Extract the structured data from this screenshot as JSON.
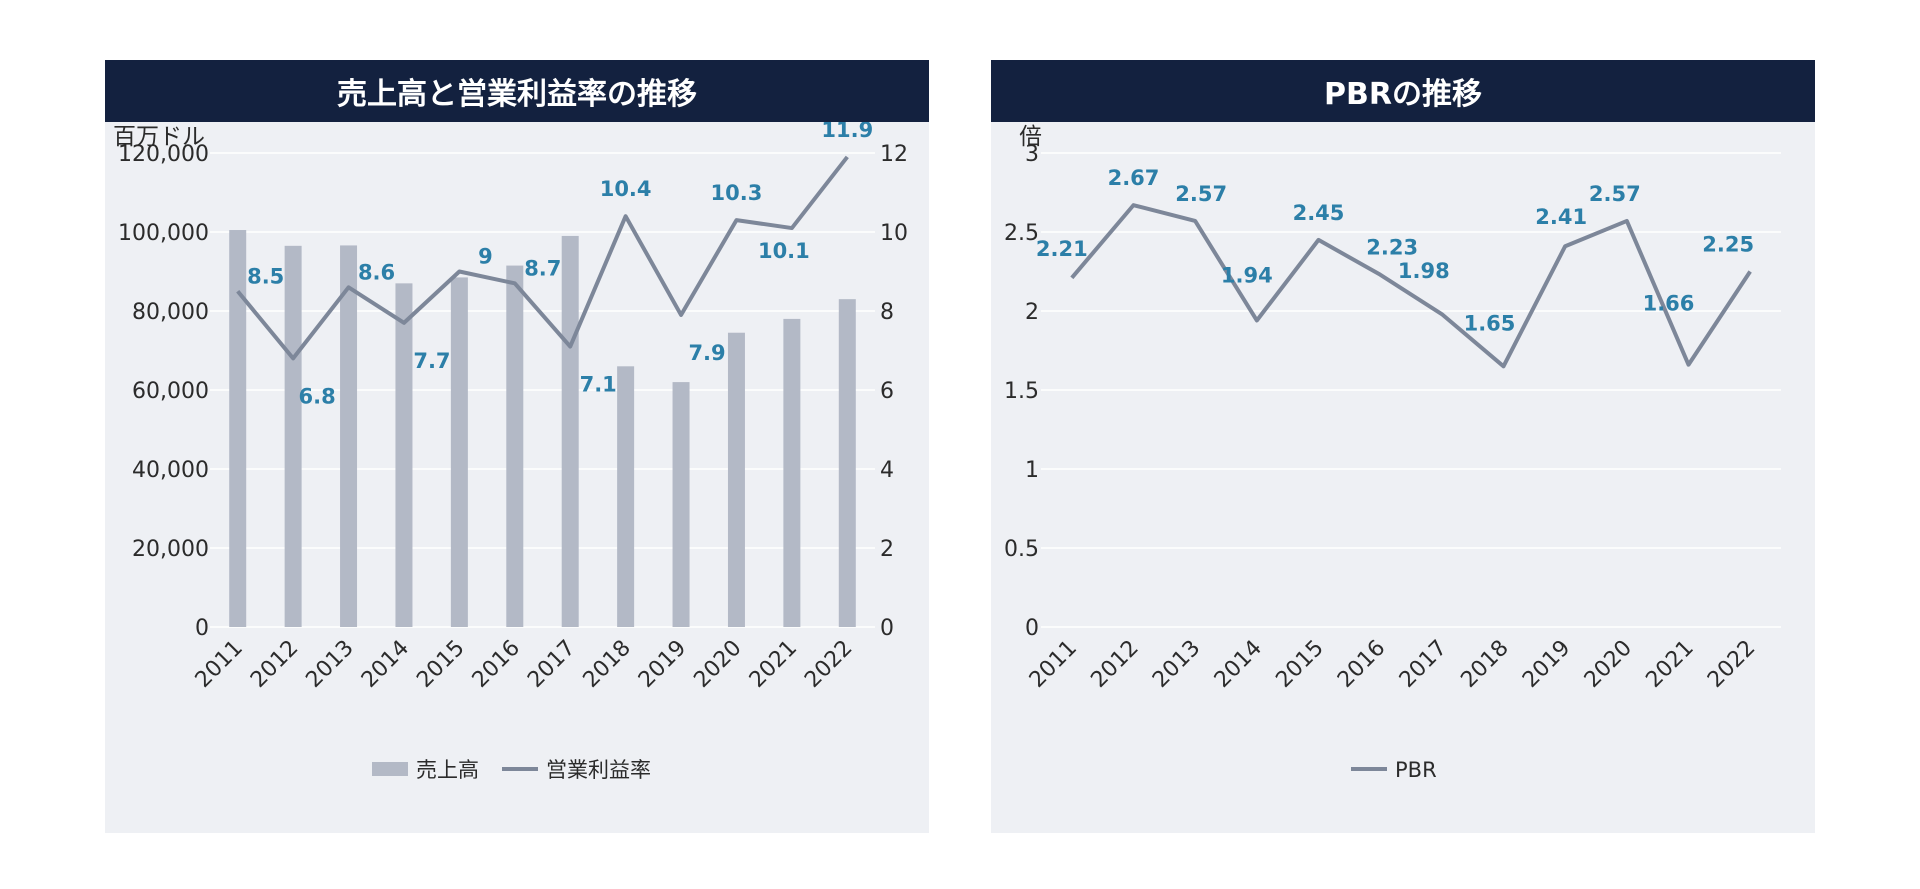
{
  "colors": {
    "header_bg": "#13213f",
    "panel_bg": "#eef0f4",
    "bar": "#b3b9c6",
    "line": "#7d8799",
    "label": "#2c7fa8",
    "grid": "#ffffff"
  },
  "chart_data": [
    {
      "type": "bar+line",
      "title": "売上高と営業利益率の推移",
      "ylabel_left": "百万ドル",
      "ylabel_right": "",
      "categories": [
        "2011",
        "2012",
        "2013",
        "2014",
        "2015",
        "2016",
        "2017",
        "2018",
        "2019",
        "2020",
        "2021",
        "2022"
      ],
      "y_left_ticks": [
        "120,000",
        "100,000",
        "80,000",
        "60,000",
        "40,000",
        "20,000",
        "0"
      ],
      "y_right_ticks": [
        "12",
        "10",
        "8",
        "6",
        "4",
        "2",
        "0"
      ],
      "ylim_left": [
        0,
        120000
      ],
      "ylim_right": [
        0,
        12
      ],
      "grid": true,
      "legend_position": "bottom",
      "series": [
        {
          "name": "売上高",
          "kind": "bar",
          "axis": "left",
          "values": [
            100500,
            96500,
            96600,
            87000,
            88500,
            91500,
            99000,
            66000,
            62000,
            74500,
            78000,
            83000
          ]
        },
        {
          "name": "営業利益率",
          "kind": "line",
          "axis": "right",
          "values": [
            8.5,
            6.8,
            8.6,
            7.7,
            9,
            8.7,
            7.1,
            10.4,
            7.9,
            10.3,
            10.1,
            11.9
          ],
          "labels": [
            "8.5",
            "6.8",
            "8.6",
            "7.7",
            "9",
            "8.7",
            "7.1",
            "10.4",
            "7.9",
            "10.3",
            "10.1",
            "11.9"
          ]
        }
      ]
    },
    {
      "type": "line",
      "title": "PBRの推移",
      "ylabel": "倍",
      "categories": [
        "2011",
        "2012",
        "2013",
        "2014",
        "2015",
        "2016",
        "2017",
        "2018",
        "2019",
        "2020",
        "2021",
        "2022"
      ],
      "y_ticks": [
        "3",
        "2.5",
        "2",
        "1.5",
        "1",
        "0.5",
        "0"
      ],
      "ylim": [
        0,
        3
      ],
      "grid": true,
      "legend_position": "bottom",
      "series": [
        {
          "name": "PBR",
          "values": [
            2.21,
            2.67,
            2.57,
            1.94,
            2.45,
            2.23,
            1.98,
            1.65,
            2.41,
            2.57,
            1.66,
            2.25
          ],
          "labels": [
            "2.21",
            "2.67",
            "2.57",
            "1.94",
            "2.45",
            "2.23",
            "1.98",
            "1.65",
            "2.41",
            "2.57",
            "1.66",
            "2.25"
          ]
        }
      ]
    }
  ]
}
